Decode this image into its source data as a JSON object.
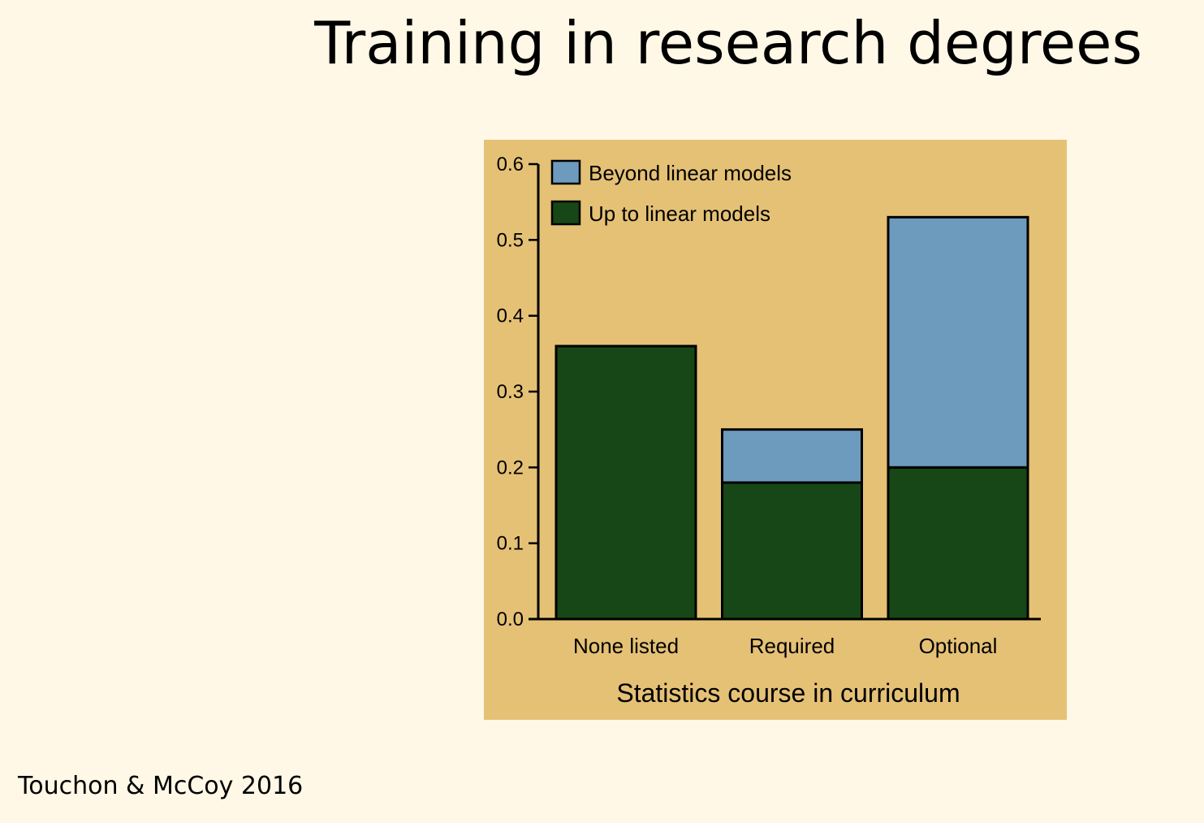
{
  "slide": {
    "title": "Training in research degrees",
    "citation": "Touchon & McCoy 2016"
  },
  "colors": {
    "background": "#fff8e6",
    "chart_panel": "#e5c176",
    "beyond_linear": "#6d9bbe",
    "up_to_linear": "#174617",
    "axis": "#000000"
  },
  "chart_data": {
    "type": "bar",
    "stacked": true,
    "categories": [
      "None listed",
      "Required",
      "Optional"
    ],
    "series": [
      {
        "name": "Up to linear models",
        "values": [
          0.36,
          0.18,
          0.2
        ],
        "color": "#174617"
      },
      {
        "name": "Beyond linear models",
        "values": [
          0.0,
          0.07,
          0.33
        ],
        "color": "#6d9bbe"
      }
    ],
    "legend_order": [
      "Beyond linear models",
      "Up to linear models"
    ],
    "legend_position": "top-left",
    "xlabel": "Statistics course in curriculum",
    "ylabel": "",
    "ylim": [
      0,
      0.6
    ],
    "yticks": [
      0.0,
      0.1,
      0.2,
      0.3,
      0.4,
      0.5,
      0.6
    ],
    "ytick_labels": [
      "0.0",
      "0.1",
      "0.2",
      "0.3",
      "0.4",
      "0.5",
      "0.6"
    ],
    "grid": false
  }
}
